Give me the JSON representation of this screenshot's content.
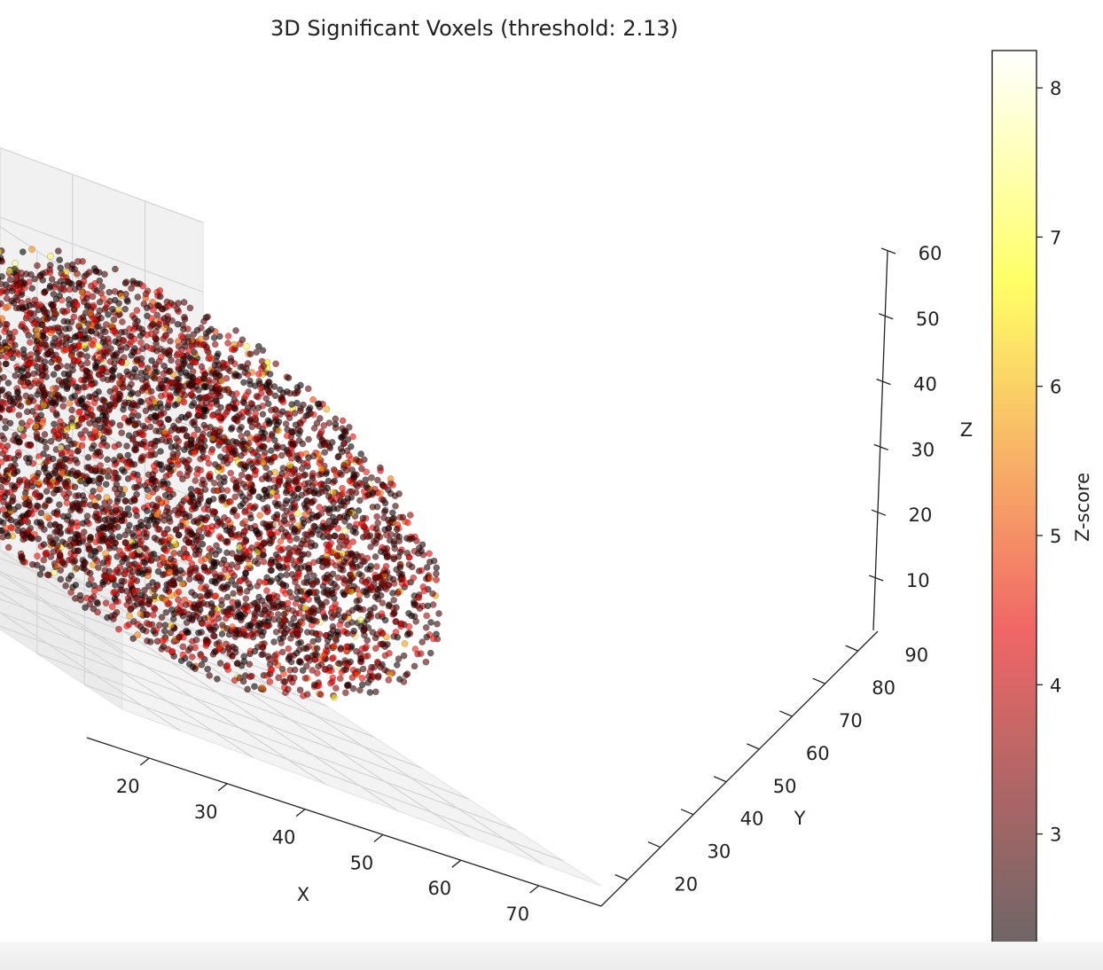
{
  "chart_data": {
    "type": "scatter3d",
    "title": "3D Significant Voxels (threshold: 2.13)",
    "xlabel": "X",
    "ylabel": "Y",
    "zlabel": "Z",
    "colorbar_label": "Z-score",
    "colormap": "hot",
    "point_alpha": 0.6,
    "threshold": 2.13,
    "xlim": [
      12,
      78
    ],
    "ylim": [
      12,
      96
    ],
    "zlim": [
      2,
      60
    ],
    "clim": [
      2.13,
      8.25
    ],
    "x_ticks": [
      20,
      30,
      40,
      50,
      60,
      70
    ],
    "y_ticks": [
      20,
      30,
      40,
      50,
      60,
      70,
      80,
      90
    ],
    "z_ticks": [
      10,
      20,
      30,
      40,
      50,
      60
    ],
    "colorbar_ticks": [
      3,
      4,
      5,
      6,
      7,
      8
    ],
    "point_cloud": {
      "shape": "ellipsoid (brain volume)",
      "x_center": 45,
      "y_center": 54,
      "z_center": 30,
      "x_radius": 30,
      "y_radius": 38,
      "z_radius": 26,
      "approx_points": 5000,
      "z_score_range": [
        2.13,
        8.2
      ]
    }
  }
}
